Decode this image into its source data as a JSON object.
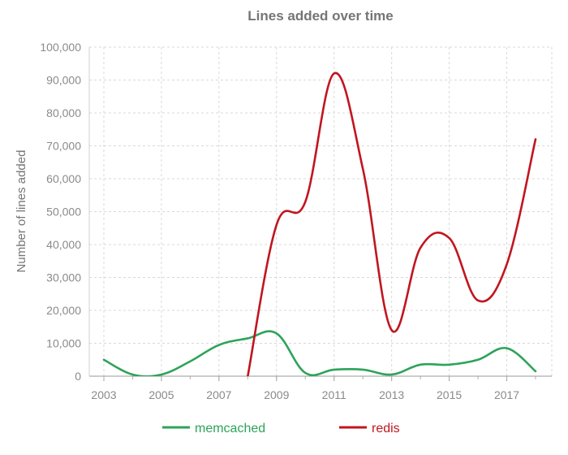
{
  "chart_data": {
    "type": "line",
    "title": "Lines added over time",
    "xlabel": "",
    "ylabel": "Number of lines added",
    "x": [
      2003,
      2004,
      2005,
      2006,
      2007,
      2008,
      2009,
      2010,
      2011,
      2012,
      2013,
      2014,
      2015,
      2016,
      2017,
      2018
    ],
    "xlim": [
      2003,
      2018
    ],
    "ylim": [
      0,
      100000
    ],
    "x_ticks": [
      "2003",
      "2005",
      "2007",
      "2009",
      "2011",
      "2013",
      "2015",
      "2017"
    ],
    "y_ticks": [
      "0",
      "10,000",
      "20,000",
      "30,000",
      "40,000",
      "50,000",
      "60,000",
      "70,000",
      "80,000",
      "90,000",
      "100,000"
    ],
    "grid": true,
    "legend_position": "bottom",
    "series": [
      {
        "name": "memcached",
        "color": "#2ea35a",
        "values": [
          5000,
          500,
          500,
          4500,
          9500,
          11500,
          13000,
          1000,
          2000,
          2000,
          500,
          3500,
          3500,
          5000,
          8500,
          1500
        ]
      },
      {
        "name": "redis",
        "color": "#c0161f",
        "values": [
          null,
          null,
          null,
          null,
          null,
          0,
          46000,
          53000,
          92000,
          63000,
          14000,
          39000,
          42000,
          23000,
          34000,
          72000
        ]
      }
    ]
  }
}
